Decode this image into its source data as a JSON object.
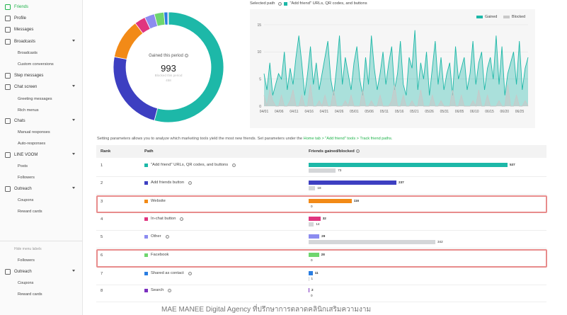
{
  "sidebar": {
    "items": [
      {
        "label": "Friends",
        "icon": "friends-icon"
      },
      {
        "label": "Profile",
        "icon": "profile-icon"
      },
      {
        "label": "Messages",
        "icon": "messages-icon"
      },
      {
        "label": "Broadcasts",
        "icon": "broadcast-icon"
      },
      {
        "label": "Step messages",
        "icon": "step-messages-icon"
      },
      {
        "label": "Chat screen",
        "icon": "chat-screen-icon"
      },
      {
        "label": "Chats",
        "icon": "chats-icon"
      },
      {
        "label": "LINE VOOM",
        "icon": "voom-icon"
      },
      {
        "label": "Outreach",
        "icon": "outreach-icon"
      },
      {
        "label": "Outreach",
        "icon": "outreach-icon"
      }
    ],
    "subs": {
      "broadcasts": "Broadcasts",
      "custom_conversions": "Custom conversions",
      "greeting": "Greeting messages",
      "rich_menus": "Rich menus",
      "manual_responses": "Manual responses",
      "auto_responses": "Auto-responses",
      "posts": "Posts",
      "followers": "Followers",
      "coupons": "Coupons",
      "reward_cards": "Reward cards",
      "hide_menu": "Hide menu labels",
      "followers2": "Followers",
      "coupons2": "Coupons",
      "reward_cards2": "Reward cards"
    }
  },
  "donut": {
    "label": "Gained this period",
    "value": "993",
    "blocked_label": "Blocked this period",
    "blocked_value": "458"
  },
  "line_chart": {
    "selected_prefix": "Selected path",
    "selected_path": "\"Add friend\" URLs, QR codes, and buttons",
    "legend_gained": "Gained",
    "legend_blocked": "Blocked",
    "colors": {
      "gained": "#1db8a8",
      "blocked": "#c8c8c8"
    }
  },
  "chart_data": {
    "type": "area",
    "x_ticks": [
      "04/01",
      "04/06",
      "04/11",
      "04/16",
      "04/21",
      "04/26",
      "05/01",
      "05/06",
      "05/11",
      "05/16",
      "05/21",
      "05/26",
      "05/31",
      "06/05",
      "06/10",
      "06/15",
      "06/20",
      "06/25"
    ],
    "y_ticks": [
      "15",
      "10",
      "5",
      "0"
    ],
    "ylim": [
      0,
      15
    ],
    "grid": true,
    "legend": "top-right",
    "series": [
      {
        "name": "Gained",
        "color": "#1db8a8",
        "values": [
          6,
          3,
          8,
          2,
          4,
          6,
          5,
          10,
          3,
          7,
          4,
          9,
          13,
          8,
          2,
          6,
          11,
          4,
          8,
          3,
          6,
          9,
          12,
          5,
          2,
          7,
          13,
          4,
          9,
          6,
          3,
          8,
          11,
          5,
          2,
          9,
          4,
          13,
          7,
          3,
          6,
          10,
          4,
          8,
          11,
          3,
          6,
          12,
          4,
          2,
          9,
          7,
          14,
          3,
          8,
          5,
          10,
          2,
          7,
          12,
          4,
          9,
          3,
          6,
          8,
          2,
          11,
          5,
          7,
          9,
          3,
          6,
          12,
          4,
          8,
          10,
          3,
          7,
          9,
          5,
          13,
          4,
          11,
          2,
          6,
          8,
          10,
          4,
          12,
          3,
          7,
          9
        ]
      },
      {
        "name": "Blocked",
        "color": "#c8c8c8",
        "values": [
          2,
          0,
          3,
          1,
          0,
          0,
          2,
          0,
          0,
          1,
          3,
          0,
          0,
          2,
          0,
          0,
          4,
          0,
          0,
          1,
          0,
          2,
          0,
          0,
          3,
          0,
          0,
          0,
          1,
          0,
          2,
          0,
          0,
          0,
          3,
          0,
          0,
          1,
          0,
          0,
          2,
          0,
          0,
          0,
          1,
          4,
          0,
          0,
          2,
          0,
          0,
          1,
          0,
          0,
          3,
          0,
          0,
          0,
          2,
          0,
          0,
          1,
          0,
          0,
          0,
          3,
          0,
          0,
          2,
          0,
          0,
          0,
          1,
          0,
          3,
          0,
          0,
          2,
          0,
          0,
          0,
          1,
          0,
          0,
          4,
          0,
          0,
          2,
          0,
          0,
          1,
          0
        ]
      }
    ]
  },
  "donut_data": {
    "type": "pie",
    "slices": [
      {
        "name": "\"Add friend\" URLs, QR codes, and buttons",
        "value": 537,
        "color": "#1db8a8"
      },
      {
        "name": "Add friends button",
        "value": 237,
        "color": "#3d3fc1"
      },
      {
        "name": "Website",
        "value": 116,
        "color": "#f28a17"
      },
      {
        "name": "In-chat button",
        "value": 32,
        "color": "#e0357f"
      },
      {
        "name": "Other",
        "value": 29,
        "color": "#8c8cf0"
      },
      {
        "name": "Facebook",
        "value": 28,
        "color": "#6fd66f"
      },
      {
        "name": "Shared as contact",
        "value": 11,
        "color": "#2a7de1"
      },
      {
        "name": "Search",
        "value": 2,
        "color": "#7b2fbf"
      }
    ]
  },
  "note": {
    "text": "Setting parameters allows you to analyze which marketing tools yield the most new friends. Set parameters under the ",
    "link": "Home tab > \"Add friend\" tools > Track friend paths."
  },
  "table": {
    "headers": {
      "rank": "Rank",
      "path": "Path",
      "friends": "Friends gained/blocked"
    },
    "rows": [
      {
        "rank": "1",
        "path": "\"Add friend\" URLs, QR codes, and buttons",
        "color": "#1db8a8",
        "gained": "537",
        "blocked": "73",
        "info": true
      },
      {
        "rank": "2",
        "path": "Add friends button",
        "color": "#3d3fc1",
        "gained": "237",
        "blocked": "18",
        "info": true
      },
      {
        "rank": "3",
        "path": "Website",
        "color": "#f28a17",
        "gained": "116",
        "blocked": "0",
        "info": false
      },
      {
        "rank": "4",
        "path": "In-chat button",
        "color": "#e0357f",
        "gained": "32",
        "blocked": "14",
        "info": true
      },
      {
        "rank": "5",
        "path": "Other",
        "color": "#8c8cf0",
        "gained": "29",
        "blocked": "342",
        "info": true
      },
      {
        "rank": "6",
        "path": "Facebook",
        "color": "#6fd66f",
        "gained": "28",
        "blocked": "0",
        "info": false
      },
      {
        "rank": "7",
        "path": "Shared as contact",
        "color": "#2a7de1",
        "gained": "11",
        "blocked": "1",
        "info": true
      },
      {
        "rank": "8",
        "path": "Search",
        "color": "#7b2fbf",
        "gained": "2",
        "blocked": "0",
        "info": true
      }
    ]
  },
  "watermark": "MAE MANEE Digital Agency ที่ปรึกษาการตลาดคลินิกเสริมความงาม"
}
